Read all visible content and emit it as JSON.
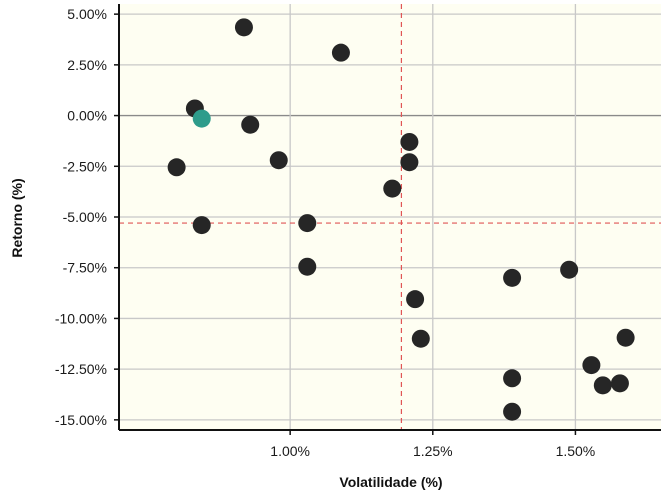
{
  "chart_data": {
    "type": "scatter",
    "title": "",
    "xlabel": "Volatilidade (%)",
    "ylabel": "Retorno (%)",
    "xlim": [
      0.7,
      1.65
    ],
    "ylim": [
      -15.5,
      5.5
    ],
    "x_ticks": [
      1.0,
      1.25,
      1.5
    ],
    "x_tick_labels": [
      "1.00%",
      "1.25%",
      "1.50%"
    ],
    "y_ticks": [
      5.0,
      2.5,
      0.0,
      -2.5,
      -5.0,
      -7.5,
      -10.0,
      -12.5,
      -15.0
    ],
    "y_tick_labels": [
      "5.00%",
      "2.50%",
      "0.00%",
      "-2.50%",
      "-5.00%",
      "-7.50%",
      "-10.00%",
      "-12.50%",
      "-15.00%"
    ],
    "grid": true,
    "reference_lines": {
      "x": 1.195,
      "y": -5.3
    },
    "colors": {
      "background": "#fefef2",
      "grid": "#c8c8c8",
      "point": "#262626",
      "highlight": "#2e9c8b",
      "reference": "#e05555"
    },
    "series": [
      {
        "points": [
          {
            "x": 0.919,
            "y": 4.35
          },
          {
            "x": 1.089,
            "y": 3.1
          },
          {
            "x": 0.833,
            "y": 0.35
          },
          {
            "x": 0.93,
            "y": -0.45
          },
          {
            "x": 0.98,
            "y": -2.2
          },
          {
            "x": 0.801,
            "y": -2.55
          },
          {
            "x": 0.845,
            "y": -5.4
          },
          {
            "x": 1.03,
            "y": -5.3
          },
          {
            "x": 1.03,
            "y": -7.45
          },
          {
            "x": 1.209,
            "y": -1.3
          },
          {
            "x": 1.209,
            "y": -2.3
          },
          {
            "x": 1.179,
            "y": -3.6
          },
          {
            "x": 1.219,
            "y": -9.05
          },
          {
            "x": 1.229,
            "y": -11.0
          },
          {
            "x": 1.389,
            "y": -8.0
          },
          {
            "x": 1.389,
            "y": -12.95
          },
          {
            "x": 1.389,
            "y": -14.6
          },
          {
            "x": 1.489,
            "y": -7.6
          },
          {
            "x": 1.528,
            "y": -12.3
          },
          {
            "x": 1.548,
            "y": -13.3
          },
          {
            "x": 1.578,
            "y": -13.2
          },
          {
            "x": 1.588,
            "y": -10.95
          }
        ]
      }
    ],
    "highlight_point": {
      "x": 0.845,
      "y": -0.15
    }
  }
}
